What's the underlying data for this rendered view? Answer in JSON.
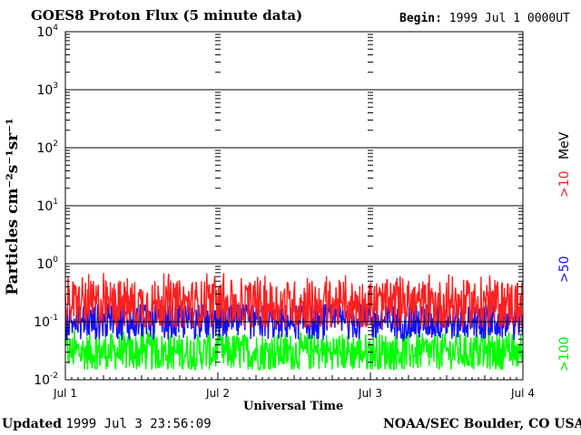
{
  "header": {
    "title": "GOES8 Proton Flux (5 minute data)",
    "begin_label": "Begin:",
    "begin_value": "1999 Jul 1 0000UT"
  },
  "footer": {
    "updated_label": "Updated",
    "updated_value": "1999 Jul  3 23:56:09",
    "credit": "NOAA/SEC Boulder, CO USA"
  },
  "chart_data": {
    "type": "line",
    "title": "GOES8 Proton Flux (5 minute data)",
    "xlabel": "Universal Time",
    "ylabel": "Particles cm⁻²s⁻¹sr⁻¹",
    "y_scale": "log",
    "ylim": [
      0.01,
      10000
    ],
    "y_ticks": [
      {
        "value": 10000,
        "base": "10",
        "exp": "4"
      },
      {
        "value": 1000,
        "base": "10",
        "exp": "3"
      },
      {
        "value": 100,
        "base": "10",
        "exp": "2"
      },
      {
        "value": 10,
        "base": "10",
        "exp": "1"
      },
      {
        "value": 1,
        "base": "10",
        "exp": "0"
      },
      {
        "value": 0.1,
        "base": "10",
        "exp": "-1"
      },
      {
        "value": 0.01,
        "base": "10",
        "exp": "-2"
      }
    ],
    "x_tick_labels": [
      "Jul 1",
      "Jul 2",
      "Jul 3",
      "Jul 4"
    ],
    "xlim_days": [
      0,
      3
    ],
    "grid": true,
    "series": [
      {
        "name": ">10 MeV",
        "label": ">10",
        "unit": "MeV",
        "color": "#ff2020",
        "typical": 0.2,
        "min": 0.08,
        "max": 0.7
      },
      {
        "name": ">50",
        "label": ">50",
        "color": "#1010ff",
        "typical": 0.1,
        "min": 0.04,
        "max": 0.2
      },
      {
        "name": ">100",
        "label": ">100",
        "color": "#00ff00",
        "typical": 0.03,
        "min": 0.015,
        "max": 0.08
      }
    ]
  }
}
